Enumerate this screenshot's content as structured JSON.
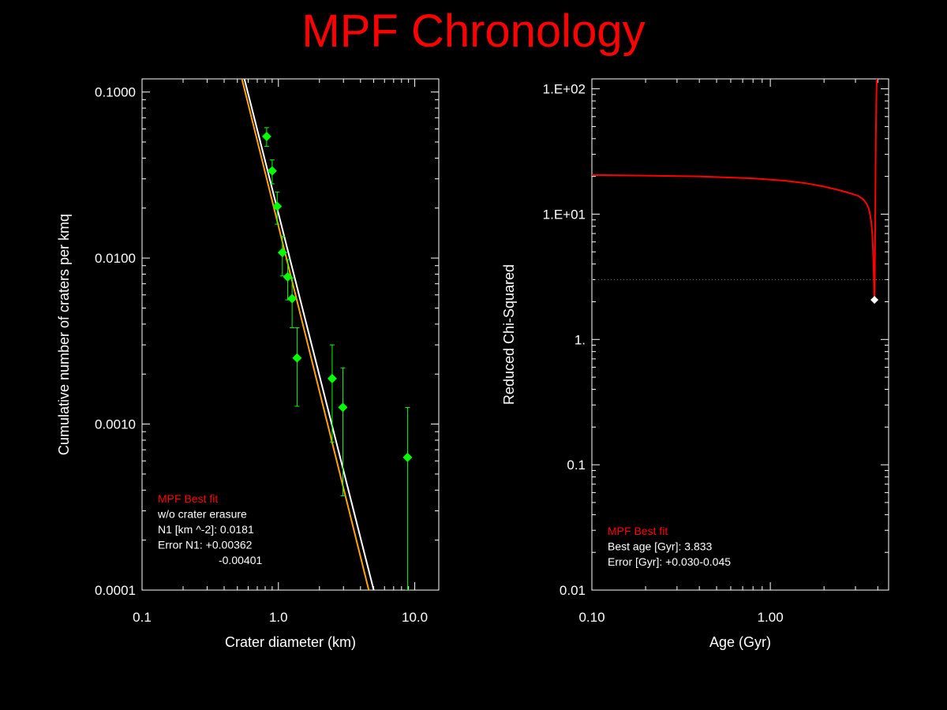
{
  "title": "MPF Chronology",
  "chart_data": [
    {
      "type": "scatter",
      "xlabel": "Crater diameter (km)",
      "ylabel": "Cumulative number of craters per kmq",
      "xscale": "log",
      "yscale": "log",
      "xlim": [
        0.1,
        15.0
      ],
      "ylim": [
        0.0001,
        0.12
      ],
      "x_ticks": [
        0.1,
        1.0,
        10.0
      ],
      "x_tick_labels": [
        "0.1",
        "1.0",
        "10.0"
      ],
      "y_ticks": [
        0.0001,
        0.001,
        0.01,
        0.1
      ],
      "y_tick_labels": [
        "0.0001",
        "0.0010",
        "0.0100",
        "0.1000"
      ],
      "grid": false,
      "points": [
        {
          "x": 0.82,
          "y": 0.054,
          "ylo": 0.047,
          "yhi": 0.061
        },
        {
          "x": 0.9,
          "y": 0.0335,
          "ylo": 0.028,
          "yhi": 0.039
        },
        {
          "x": 0.98,
          "y": 0.0205,
          "ylo": 0.016,
          "yhi": 0.025
        },
        {
          "x": 1.07,
          "y": 0.0108,
          "ylo": 0.0078,
          "yhi": 0.0135
        },
        {
          "x": 1.17,
          "y": 0.0077,
          "ylo": 0.0056,
          "yhi": 0.0098
        },
        {
          "x": 1.26,
          "y": 0.0057,
          "ylo": 0.0038,
          "yhi": 0.0076
        },
        {
          "x": 1.37,
          "y": 0.0025,
          "ylo": 0.00128,
          "yhi": 0.0038
        },
        {
          "x": 2.48,
          "y": 0.00188,
          "ylo": 0.00078,
          "yhi": 0.003
        },
        {
          "x": 2.97,
          "y": 0.00126,
          "ylo": 0.00037,
          "yhi": 0.00218
        },
        {
          "x": 8.85,
          "y": 0.00063,
          "ylo": 0.0001,
          "yhi": 0.00126
        }
      ],
      "lines": [
        {
          "color": "#ffffff",
          "x": [
            0.563,
            5.0
          ],
          "y": [
            0.12,
            0.0001
          ]
        },
        {
          "color": "#ffa500",
          "x": [
            0.54,
            4.6
          ],
          "y": [
            0.12,
            0.0001
          ]
        }
      ],
      "legend": {
        "position": "lower-left",
        "lines": [
          {
            "text": "MPF Best fit",
            "color": "#ff0000"
          },
          {
            "text": "w/o crater erasure",
            "color": "#ffffff"
          },
          {
            "text": "N1 [km ^-2]: 0.0181",
            "color": "#ffffff"
          },
          {
            "text": "Error N1: +0.00362",
            "color": "#ffffff"
          },
          {
            "text": "-0.00401",
            "color": "#ffffff",
            "indent": true
          }
        ]
      },
      "colors": {
        "points": "#00ff00",
        "errorbars": "#00ff00"
      }
    },
    {
      "type": "line",
      "xlabel": "Age (Gyr)",
      "ylabel": "Reduced Chi-Squared",
      "xscale": "log",
      "yscale": "log",
      "xlim": [
        0.1,
        4.6
      ],
      "ylim": [
        0.01,
        120
      ],
      "x_ticks": [
        0.1,
        1.0
      ],
      "x_tick_labels": [
        "0.10",
        "1.00"
      ],
      "y_ticks": [
        0.01,
        0.1,
        1,
        10,
        100
      ],
      "y_tick_labels": [
        "0.01",
        "0.1",
        "1.",
        "1.E+01",
        "1.E+02"
      ],
      "grid": false,
      "series": [
        {
          "color": "#ff0000",
          "x": [
            0.1,
            0.2,
            0.4,
            0.8,
            1.2,
            1.6,
            2.0,
            2.4,
            2.8,
            3.1,
            3.3,
            3.45,
            3.55,
            3.62,
            3.68,
            3.73,
            3.77,
            3.8,
            3.82,
            3.833,
            3.845,
            3.86,
            3.88,
            3.9,
            3.93,
            3.96
          ],
          "y": [
            20.5,
            20.3,
            20.0,
            19.3,
            18.5,
            17.6,
            16.6,
            15.6,
            14.7,
            14.0,
            13.2,
            12.2,
            11.2,
            10.0,
            8.6,
            6.8,
            4.8,
            3.2,
            2.4,
            2.07,
            2.5,
            5.0,
            15.0,
            40.0,
            90.0,
            130.0
          ]
        }
      ],
      "reference_line": {
        "y": 3.0,
        "color": "#808000",
        "style": "dotted"
      },
      "best_point": {
        "x": 3.833,
        "y": 2.07,
        "color": "#ffffff"
      },
      "legend": {
        "position": "lower-left",
        "lines": [
          {
            "text": "MPF Best fit",
            "color": "#ff0000"
          },
          {
            "text": "Best age [Gyr]: 3.833",
            "color": "#ffffff"
          },
          {
            "text": "Error [Gyr]: +0.030-0.045",
            "color": "#ffffff"
          }
        ]
      }
    }
  ]
}
